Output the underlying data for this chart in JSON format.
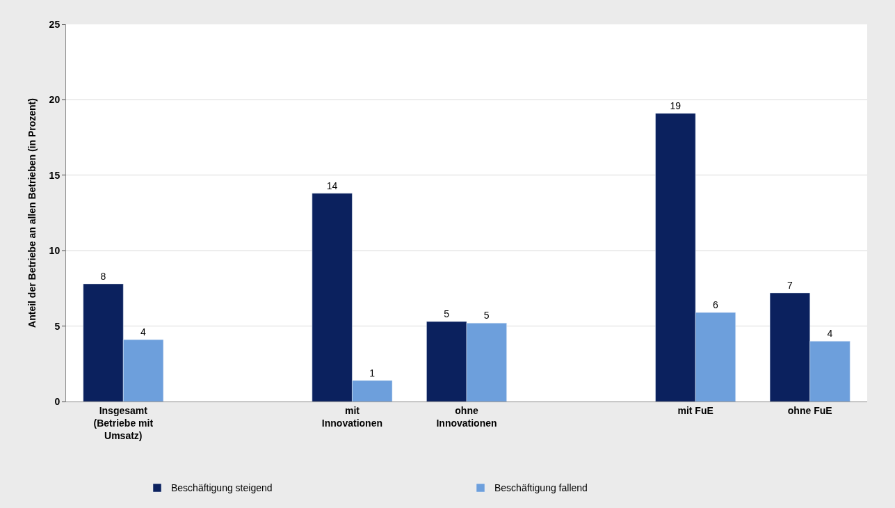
{
  "chart_data": {
    "type": "bar",
    "ylabel": "Anteil der Betriebe an allen Betrieben (in Prozent)",
    "categories": [
      "Insgesamt\n(Betriebe mit\nUmsatz)",
      null,
      "mit\nInnovationen",
      "ohne\nInnovationen",
      null,
      "mit FuE",
      "ohne FuE"
    ],
    "series": [
      {
        "name": "Beschäftigung steigend",
        "color": "#0b215e",
        "values": [
          7.8,
          null,
          13.8,
          5.3,
          null,
          19.1,
          7.2
        ],
        "value_labels": [
          "8",
          null,
          "14",
          "5",
          null,
          "19",
          "7"
        ]
      },
      {
        "name": "Beschäftigung fallend",
        "color": "#6d9fdc",
        "values": [
          4.1,
          null,
          1.4,
          5.2,
          null,
          5.9,
          4.0
        ],
        "value_labels": [
          "4",
          null,
          "1",
          "5",
          null,
          "6",
          "4"
        ]
      }
    ],
    "ylim": [
      0,
      25
    ],
    "yticks": [
      0,
      5,
      10,
      15,
      20,
      25
    ],
    "grid": "y",
    "legend": "bottom"
  }
}
